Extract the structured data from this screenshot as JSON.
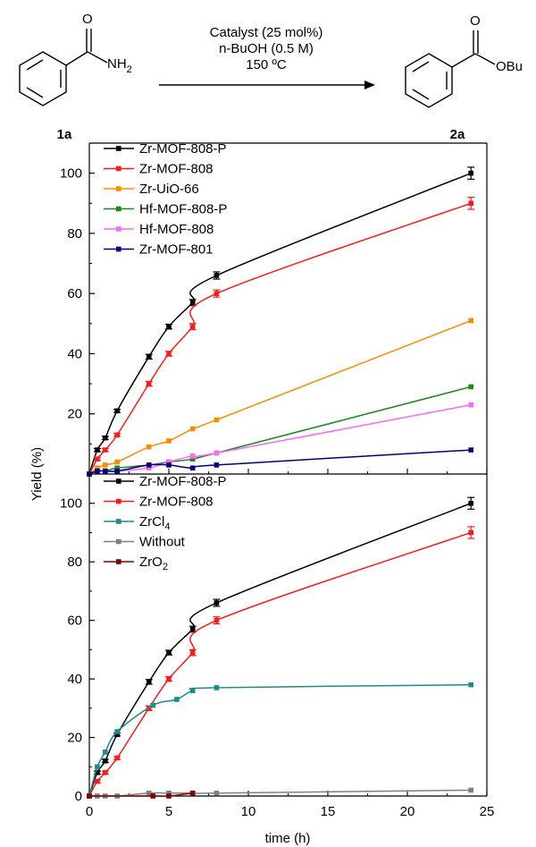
{
  "scheme": {
    "reactant_label": "1a",
    "product_label": "2a",
    "nh2_text": "NH",
    "nh2_sub": "2",
    "obu_text": "OBu",
    "carbonyl_o": "O",
    "condition_lines": [
      "Catalyst (25 mol%)",
      "n-BuOH (0.5 M)",
      "150 ºC"
    ]
  },
  "colors": {
    "Zr-MOF-808-P": "#000000",
    "Zr-MOF-808": "#ff1a1a",
    "Zr-UiO-66": "#ff8c00",
    "Hf-MOF-808-P": "#1a8a1a",
    "Hf-MOF-808": "#ff66ff",
    "Zr-MOF-801": "#000080",
    "ZrCl4": "#1a8c8c",
    "Without": "#7f7f7f",
    "ZrO2": "#800000"
  },
  "chart_data": [
    {
      "type": "line",
      "xlabel": "",
      "ylabel": "Yield (%)",
      "xlim": [
        0,
        25
      ],
      "ylim": [
        0,
        110
      ],
      "yticks": [
        20,
        40,
        60,
        80,
        100
      ],
      "legend_position": "top-left",
      "series": [
        {
          "name": "Zr-MOF-808-P",
          "x": [
            0,
            0.5,
            1,
            1.75,
            3.75,
            5,
            6.5,
            8,
            24
          ],
          "y": [
            0,
            8,
            12,
            21,
            39,
            49,
            57,
            66,
            100
          ],
          "err": [
            0,
            0.5,
            0.5,
            0.5,
            0.8,
            0.8,
            1,
            1.2,
            2
          ]
        },
        {
          "name": "Zr-MOF-808",
          "x": [
            0,
            0.5,
            1,
            1.75,
            3.75,
            5,
            6.5,
            8,
            24
          ],
          "y": [
            0,
            5,
            8,
            13,
            30,
            40,
            49,
            60,
            90
          ],
          "err": [
            0,
            0.5,
            0.5,
            0.5,
            0.8,
            0.8,
            1,
            1.2,
            2
          ]
        },
        {
          "name": "Zr-UiO-66",
          "x": [
            0,
            0.5,
            1,
            1.75,
            3.75,
            5,
            6.5,
            8,
            24
          ],
          "y": [
            0,
            2,
            3,
            4,
            9,
            11,
            15,
            18,
            51
          ]
        },
        {
          "name": "Hf-MOF-808-P",
          "x": [
            0,
            0.5,
            1,
            1.75,
            3.75,
            5,
            6.5,
            8,
            24
          ],
          "y": [
            0,
            1,
            1,
            2,
            3,
            4,
            5,
            7,
            29
          ]
        },
        {
          "name": "Hf-MOF-808",
          "x": [
            0,
            0.5,
            1,
            1.75,
            3.75,
            5,
            6.5,
            8,
            24
          ],
          "y": [
            0,
            1,
            1,
            1,
            2,
            4,
            6,
            7,
            23
          ]
        },
        {
          "name": "Zr-MOF-801",
          "x": [
            0,
            0.5,
            1,
            1.75,
            3.75,
            5,
            6.5,
            8,
            24
          ],
          "y": [
            0,
            1,
            1,
            1,
            3,
            3,
            2,
            3,
            8
          ]
        }
      ]
    },
    {
      "type": "line",
      "xlabel": "time (h)",
      "ylabel": "",
      "xlim": [
        0,
        25
      ],
      "ylim": [
        0,
        110
      ],
      "xticks": [
        0,
        5,
        10,
        15,
        20,
        25
      ],
      "yticks": [
        0,
        20,
        40,
        60,
        80,
        100
      ],
      "legend_position": "top-left",
      "series": [
        {
          "name": "Zr-MOF-808-P",
          "x": [
            0,
            0.5,
            1,
            1.75,
            3.75,
            5,
            6.5,
            8,
            24
          ],
          "y": [
            0,
            8,
            12,
            21,
            39,
            49,
            57,
            66,
            100
          ],
          "err": [
            0,
            0.5,
            0.5,
            0.5,
            0.8,
            0.8,
            1,
            1.2,
            2
          ]
        },
        {
          "name": "Zr-MOF-808",
          "x": [
            0,
            0.5,
            1,
            1.75,
            3.75,
            5,
            6.5,
            8,
            24
          ],
          "y": [
            0,
            5,
            8,
            13,
            30,
            40,
            49,
            60,
            90
          ],
          "err": [
            0,
            0.5,
            0.5,
            0.5,
            0.8,
            0.8,
            1,
            1.2,
            2
          ]
        },
        {
          "name": "ZrCl4",
          "x": [
            0,
            0.5,
            1,
            1.75,
            4,
            5.5,
            6.5,
            8,
            24
          ],
          "y": [
            0,
            10,
            15,
            22,
            31,
            33,
            36,
            37,
            38
          ]
        },
        {
          "name": "Without",
          "x": [
            0,
            0.5,
            1,
            1.75,
            3.75,
            5,
            6.5,
            8,
            24
          ],
          "y": [
            0,
            0,
            0,
            0,
            1,
            1,
            1,
            1,
            2
          ]
        },
        {
          "name": "ZrO2",
          "x": [
            0,
            4,
            5,
            6.5
          ],
          "y": [
            0,
            0,
            0,
            1
          ]
        }
      ]
    }
  ],
  "legend_labels": {
    "top": [
      "Zr-MOF-808-P",
      "Zr-MOF-808",
      "Zr-UiO-66",
      "Hf-MOF-808-P",
      "Hf-MOF-808",
      "Zr-MOF-801"
    ],
    "bottom": [
      {
        "text": "Zr-MOF-808-P",
        "sub": ""
      },
      {
        "text": "Zr-MOF-808",
        "sub": ""
      },
      {
        "text": "ZrCl",
        "sub": "4"
      },
      {
        "text": "Without",
        "sub": ""
      },
      {
        "text": "ZrO",
        "sub": "2"
      }
    ]
  }
}
